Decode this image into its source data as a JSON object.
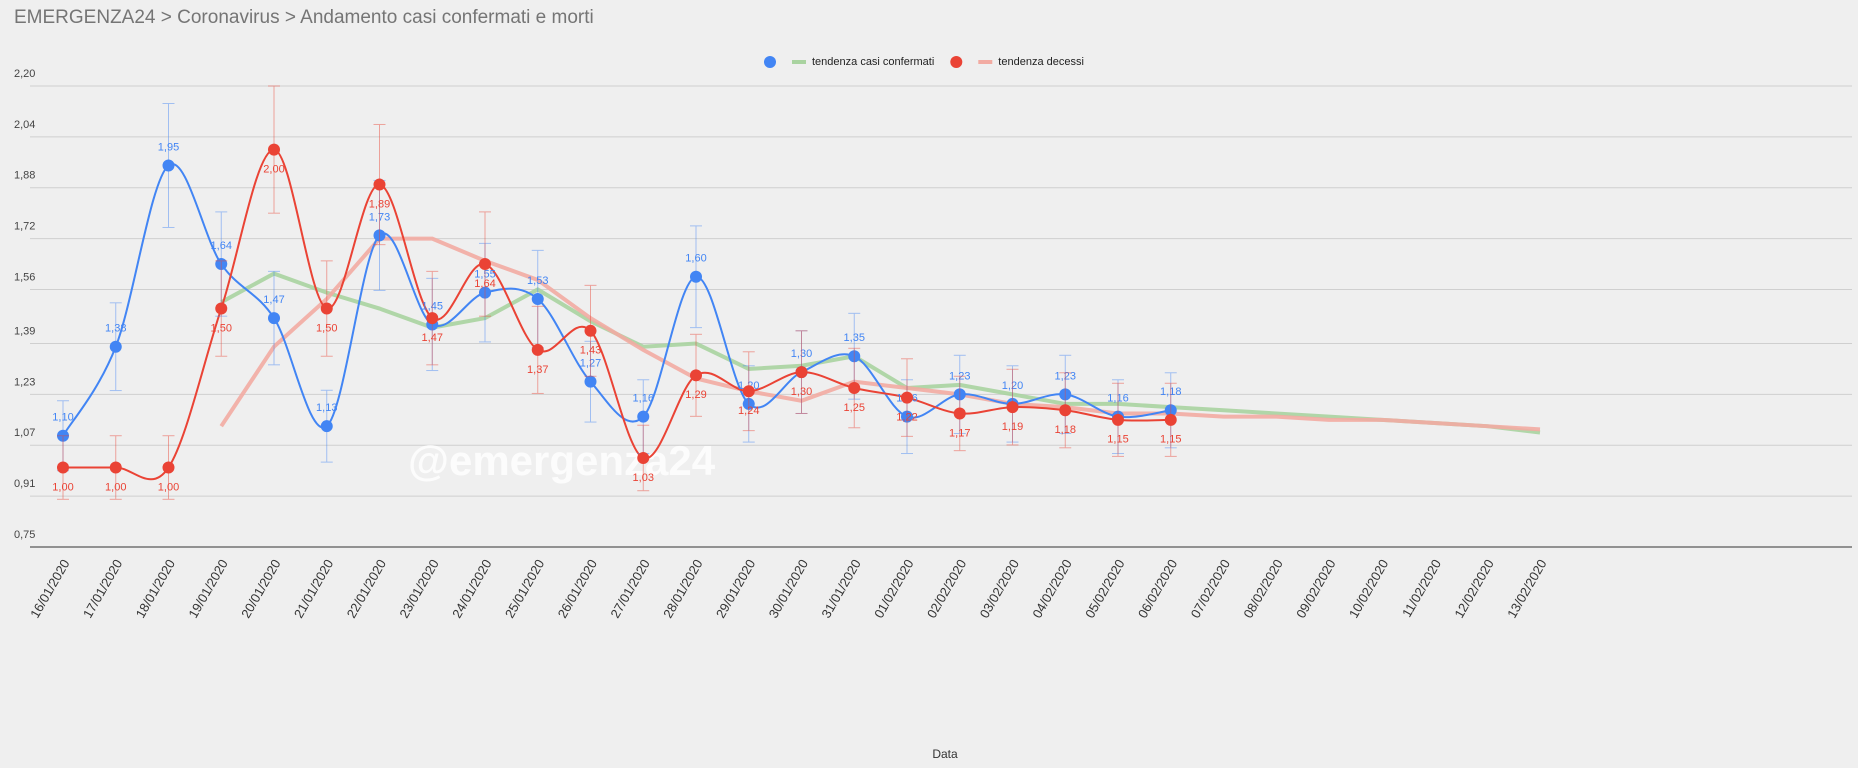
{
  "chart_data": {
    "type": "line",
    "title": "EMERGENZA24 > Coronavirus > Andamento casi confermati e morti",
    "watermark": "@emergenza24",
    "x_label": "Data",
    "categories": [
      "16/01/2020",
      "17/01/2020",
      "18/01/2020",
      "19/01/2020",
      "20/01/2020",
      "21/01/2020",
      "22/01/2020",
      "23/01/2020",
      "24/01/2020",
      "25/01/2020",
      "26/01/2020",
      "27/01/2020",
      "28/01/2020",
      "29/01/2020",
      "30/01/2020",
      "31/01/2020",
      "01/02/2020",
      "02/02/2020",
      "03/02/2020",
      "04/02/2020",
      "05/02/2020",
      "06/02/2020",
      "07/02/2020",
      "08/02/2020",
      "09/02/2020",
      "10/02/2020",
      "11/02/2020",
      "12/02/2020",
      "13/02/2020"
    ],
    "ylim": [
      0.75,
      2.2
    ],
    "yticks": [
      {
        "value": 0.75,
        "label": "0,75"
      },
      {
        "value": 0.91,
        "label": "0,91"
      },
      {
        "value": 1.07,
        "label": "1,07"
      },
      {
        "value": 1.23,
        "label": "1,23"
      },
      {
        "value": 1.39,
        "label": "1,39"
      },
      {
        "value": 1.56,
        "label": "1,56"
      },
      {
        "value": 1.72,
        "label": "1,72"
      },
      {
        "value": 1.88,
        "label": "1,88"
      },
      {
        "value": 2.04,
        "label": "2,04"
      },
      {
        "value": 2.2,
        "label": "2,20"
      }
    ],
    "grid": true,
    "legend": "top",
    "error_bars_percent": 10,
    "series": [
      {
        "color": "#4285f4",
        "smooth": true,
        "markers": true,
        "error_bars": true,
        "label_position": "above",
        "values": [
          1.1,
          1.38,
          1.95,
          1.64,
          1.47,
          1.13,
          1.73,
          1.45,
          1.55,
          1.53,
          1.27,
          1.16,
          1.6,
          1.2,
          1.3,
          1.35,
          1.16,
          1.23,
          1.2,
          1.23,
          1.16,
          1.18,
          null,
          null,
          null,
          null,
          null,
          null,
          null
        ],
        "value_labels": [
          "1,10",
          "1,38",
          "1,95",
          "1,64",
          "1,47",
          "1,13",
          "1,73",
          "1,45",
          "1,55",
          "1,53",
          "1,27",
          "1,16",
          "1,60",
          "1,20",
          "1,30",
          "1,35",
          "1,16",
          "1,23",
          "1,20",
          "1,23",
          "1,16",
          "1,18",
          null,
          null,
          null,
          null,
          null,
          null,
          null
        ]
      },
      {
        "color": "#ea4335",
        "smooth": true,
        "markers": true,
        "error_bars": true,
        "label_position": "below",
        "values": [
          1.0,
          1.0,
          1.0,
          1.5,
          2.0,
          1.5,
          1.89,
          1.47,
          1.64,
          1.37,
          1.43,
          1.03,
          1.29,
          1.24,
          1.3,
          1.25,
          1.22,
          1.17,
          1.19,
          1.18,
          1.15,
          1.15,
          null,
          null,
          null,
          null,
          null,
          null,
          null
        ],
        "value_labels": [
          "1,00",
          "1,00",
          "1,00",
          "1,50",
          "2,00",
          "1,50",
          "1,89",
          "1,47",
          "1,64",
          "1,37",
          "1,43",
          "1,03",
          "1,29",
          "1,24",
          "1,30",
          "1,25",
          "1,22",
          "1,17",
          "1,19",
          "1,18",
          "1,15",
          "1,15",
          null,
          null,
          null,
          null,
          null,
          null,
          null
        ]
      },
      {
        "name": "tendenza casi confermati",
        "color": "#a9d3a0",
        "smooth": false,
        "markers": false,
        "values": [
          null,
          null,
          null,
          1.52,
          1.61,
          1.55,
          1.5,
          1.44,
          1.47,
          1.56,
          1.46,
          1.38,
          1.39,
          1.31,
          1.32,
          1.35,
          1.25,
          1.26,
          1.23,
          1.2,
          1.2,
          1.19,
          1.18,
          1.17,
          1.16,
          1.15,
          1.14,
          1.13,
          1.11
        ]
      },
      {
        "name": "tendenza decessi",
        "color": "#f2aba2",
        "smooth": false,
        "markers": false,
        "values": [
          null,
          null,
          null,
          1.13,
          1.38,
          1.53,
          1.72,
          1.72,
          1.65,
          1.59,
          1.47,
          1.37,
          1.28,
          1.24,
          1.21,
          1.27,
          1.25,
          1.23,
          1.2,
          1.19,
          1.17,
          1.17,
          1.16,
          1.16,
          1.15,
          1.15,
          1.14,
          1.13,
          1.12
        ]
      }
    ]
  }
}
